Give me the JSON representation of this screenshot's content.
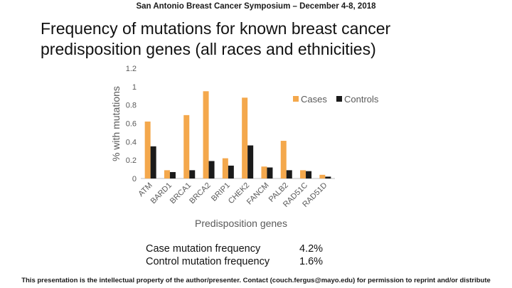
{
  "header": "San Antonio Breast Cancer Symposium – December 4-8, 2018",
  "title": "Frequency of mutations for known breast cancer predisposition genes (all races and ethnicities)",
  "colors": {
    "cases": "#F4A84C",
    "controls": "#1a1a1a",
    "axis_text": "#595959"
  },
  "chart_data": {
    "type": "bar",
    "categories": [
      "ATM",
      "BARD1",
      "BRCA1",
      "BRCA2",
      "BRIP1",
      "CHEK2",
      "FANCM",
      "PALB2",
      "RAD51C",
      "RAD51D"
    ],
    "series": [
      {
        "name": "Cases",
        "values": [
          0.62,
          0.09,
          0.69,
          0.95,
          0.22,
          0.88,
          0.13,
          0.41,
          0.09,
          0.04
        ]
      },
      {
        "name": "Controls",
        "values": [
          0.35,
          0.07,
          0.09,
          0.19,
          0.14,
          0.36,
          0.12,
          0.09,
          0.08,
          0.02
        ]
      }
    ],
    "ylabel": "% with mutations",
    "xlabel": "Predisposition genes",
    "ylim": [
      0,
      1.2
    ],
    "yticks": [
      "0",
      "0.2",
      "0.4",
      "0.6",
      "0.8",
      "1",
      "1.2"
    ],
    "grid": false,
    "legend": "right"
  },
  "stats": [
    {
      "label": "Case mutation frequency",
      "value": "4.2%"
    },
    {
      "label": "Control mutation frequency",
      "value": "1.6%"
    }
  ],
  "footer": "This presentation is the intellectual property of the author/presenter.  Contact (couch.fergus@mayo.edu) for permission to reprint and/or distribute"
}
